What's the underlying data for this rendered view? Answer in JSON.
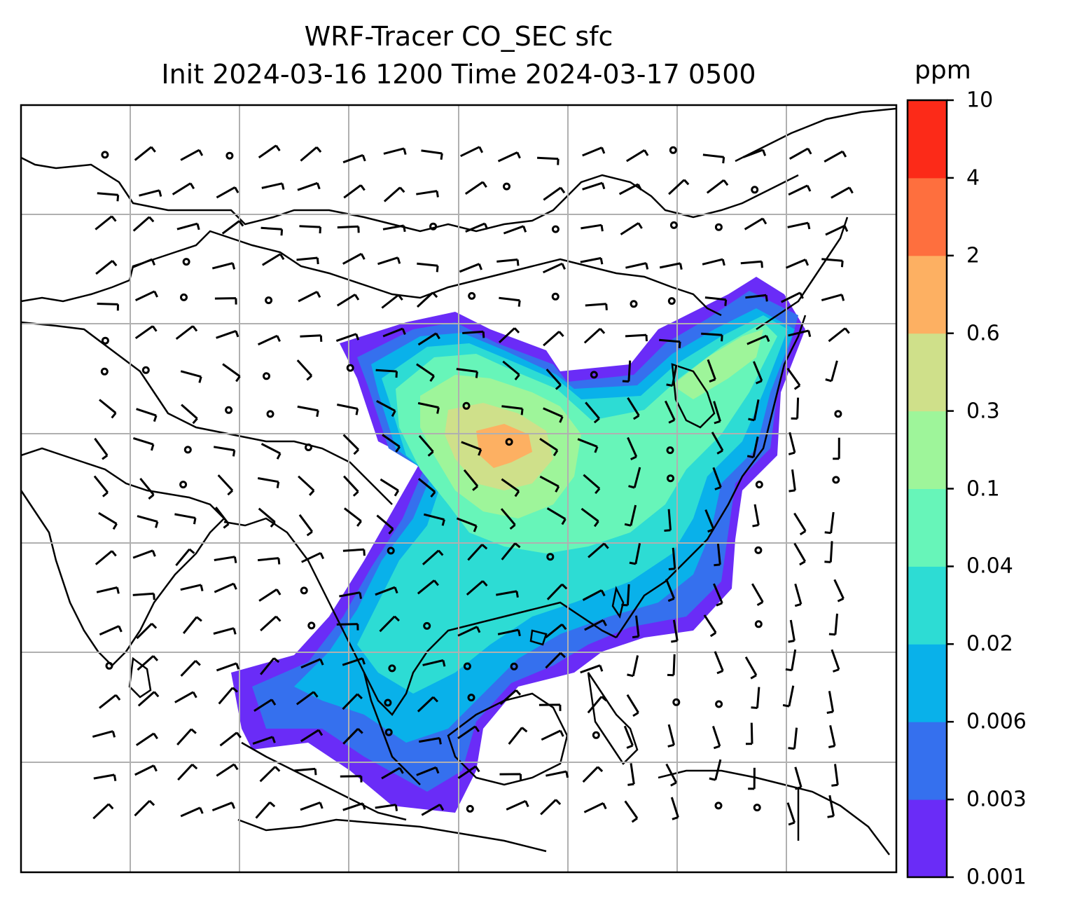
{
  "title": {
    "line1": "WRF-Tracer CO_SEC sfc",
    "line2": "Init 2024-03-16 1200 Time 2024-03-17 0500"
  },
  "colorbar": {
    "unit": "ppm",
    "levels": [
      "0.001",
      "0.003",
      "0.006",
      "0.02",
      "0.04",
      "0.1",
      "0.3",
      "0.6",
      "2",
      "4",
      "10"
    ],
    "colors": [
      "#6a2cf7",
      "#3570ee",
      "#09b1ea",
      "#2ddcd4",
      "#67f5b9",
      "#9ef59a",
      "#cfe08a",
      "#fdb062",
      "#fe6f3e",
      "#fc2a18"
    ]
  },
  "map": {
    "projection": "lambert-conformal",
    "gridlines": true,
    "wind_barbs": true,
    "field": "CO_SEC surface tracer concentration"
  }
}
